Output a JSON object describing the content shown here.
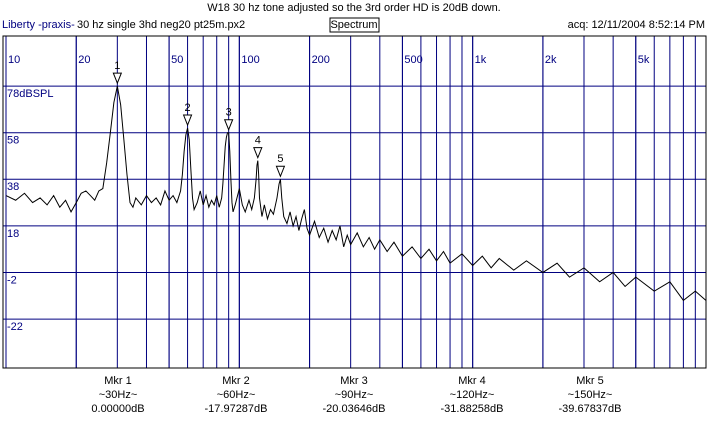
{
  "header": {
    "title": "W18 30 hz tone adjusted so the 3rd order HD is 20dB down.",
    "app": "Liberty -praxis-",
    "file": "30 hz single 3hd neg20 pt25m.px2",
    "mode": "Spectrum",
    "acq": "acq: 12/11/2004 8:52:14 PM"
  },
  "chart_data": {
    "type": "line",
    "x": [
      10,
      11,
      12,
      13,
      14,
      15,
      16,
      17,
      18,
      19,
      20,
      21,
      22,
      23,
      24,
      25,
      26,
      27,
      28,
      29,
      30,
      31,
      32,
      33,
      34,
      35,
      36,
      38,
      40,
      42,
      44,
      46,
      48,
      50,
      52,
      54,
      56,
      57,
      58,
      59,
      60,
      61,
      62,
      63,
      64,
      66,
      68,
      70,
      72,
      74,
      76,
      78,
      80,
      82,
      84,
      85,
      86,
      87,
      88,
      89,
      90,
      91,
      92,
      93,
      94,
      96,
      100,
      103,
      106,
      110,
      113,
      116,
      118,
      119,
      120,
      121,
      122,
      125,
      128,
      132,
      136,
      140,
      145,
      148,
      150,
      152,
      155,
      160,
      165,
      170,
      175,
      180,
      185,
      190,
      195,
      200,
      210,
      220,
      230,
      240,
      250,
      260,
      270,
      280,
      290,
      300,
      320,
      340,
      360,
      380,
      400,
      430,
      460,
      500,
      550,
      600,
      650,
      700,
      750,
      800,
      900,
      1000,
      1100,
      1200,
      1300,
      1500,
      1700,
      2000,
      2300,
      2600,
      3000,
      3500,
      4000,
      4500,
      5000,
      6000,
      7000,
      8000,
      9000,
      10000
    ],
    "series": [
      {
        "color": "#000000",
        "values": [
          31,
          29,
          32,
          28,
          30,
          27,
          31,
          26,
          29,
          24,
          28,
          32,
          33,
          31,
          29,
          33,
          34,
          45,
          58,
          71,
          78,
          70,
          55,
          40,
          28,
          26,
          30,
          27,
          31,
          28,
          30,
          27,
          33,
          29,
          31,
          28,
          33,
          40,
          50,
          57,
          60,
          55,
          42,
          30,
          25,
          28,
          33,
          27,
          31,
          26,
          29,
          27,
          31,
          26,
          30,
          36,
          44,
          52,
          56,
          58,
          58,
          50,
          38,
          28,
          24,
          27,
          34,
          27,
          24,
          29,
          25,
          30,
          38,
          44,
          46,
          40,
          30,
          22,
          27,
          21,
          25,
          23,
          30,
          36,
          38,
          30,
          22,
          19,
          24,
          18,
          22,
          16,
          21,
          25,
          17,
          14,
          20,
          13,
          17,
          11,
          16,
          12,
          18,
          9,
          14,
          10,
          15,
          9,
          13,
          8,
          12,
          7,
          11,
          5,
          9,
          4,
          8,
          3,
          7,
          2,
          6,
          1,
          5,
          0,
          4,
          -1,
          3,
          -2,
          2,
          -4,
          0,
          -6,
          -2,
          -8,
          -4,
          -10,
          -6,
          -14,
          -10,
          -14
        ]
      }
    ],
    "xscale": "log",
    "xlim": [
      10,
      10000
    ],
    "ylim": [
      -43,
      99.5
    ],
    "xticks": [
      10,
      20,
      50,
      100,
      200,
      500,
      {
        "value": 1000,
        "label": "1k"
      },
      {
        "value": 2000,
        "label": "2k"
      },
      {
        "value": 5000,
        "label": "5k"
      }
    ],
    "yticks": [
      {
        "value": 78,
        "label": "78dBSPL"
      },
      58,
      38,
      18,
      -2,
      -22
    ],
    "grid": true,
    "minor_grid": true,
    "grid_color": "#000080",
    "markers": [
      {
        "tag": "1",
        "name": "Mkr 1",
        "freq": 30,
        "freq_label": "~30Hz~",
        "level": 0,
        "level_label": "0.00000dB"
      },
      {
        "tag": "2",
        "name": "Mkr 2",
        "freq": 60,
        "freq_label": "~60Hz~",
        "level": -17.97287,
        "level_label": "-17.97287dB"
      },
      {
        "tag": "3",
        "name": "Mkr 3",
        "freq": 90,
        "freq_label": "~90Hz~",
        "level": -20.03646,
        "level_label": "-20.03646dB"
      },
      {
        "tag": "4",
        "name": "Mkr 4",
        "freq": 120,
        "freq_label": "~120Hz~",
        "level": -31.88258,
        "level_label": "-31.88258dB"
      },
      {
        "tag": "5",
        "name": "Mkr 5",
        "freq": 150,
        "freq_label": "~150Hz~",
        "level": -39.67837,
        "level_label": "-39.67837dB"
      }
    ]
  }
}
